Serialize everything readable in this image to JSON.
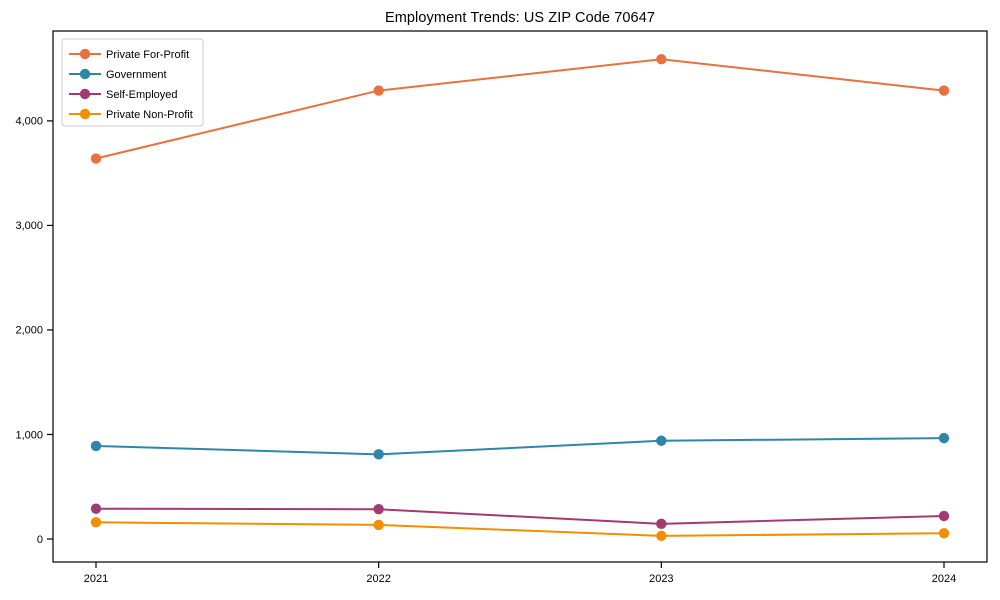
{
  "chart_data": {
    "type": "line",
    "title": "Employment Trends: US ZIP Code 70647",
    "xlabel": "",
    "ylabel": "",
    "categories": [
      "2021",
      "2022",
      "2023",
      "2024"
    ],
    "series": [
      {
        "name": "Private For-Profit",
        "color": "#e8713f",
        "values": [
          3640,
          4290,
          4590,
          4290
        ]
      },
      {
        "name": "Government",
        "color": "#2e86a8",
        "values": [
          890,
          810,
          940,
          965
        ]
      },
      {
        "name": "Self-Employed",
        "color": "#a23b72",
        "values": [
          290,
          285,
          145,
          220
        ]
      },
      {
        "name": "Private Non-Profit",
        "color": "#f18f01",
        "values": [
          160,
          135,
          30,
          55
        ]
      }
    ],
    "yticks": [
      0,
      1000,
      2000,
      3000,
      4000
    ],
    "ytick_labels": [
      "0",
      "1,000",
      "2,000",
      "3,000",
      "4,000"
    ],
    "ylim": [
      -220,
      4860
    ],
    "grid": false,
    "legend_position": "upper-left",
    "frame": "full-box",
    "axis_color": "#000000",
    "tick_label_color": "#000000",
    "legend_border_color": "#cccccc",
    "legend_background": "#ffffff"
  }
}
